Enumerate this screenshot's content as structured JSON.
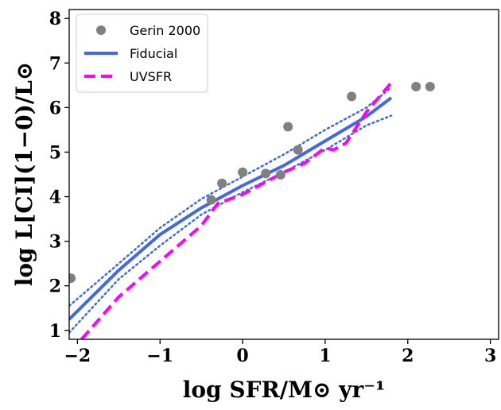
{
  "chart_data": {
    "type": "line",
    "xlabel": "log SFR/M⊙ yr⁻¹",
    "ylabel": "log L[CI](1−0)/L⊙",
    "xlim": [
      -2.1,
      3.1
    ],
    "ylim": [
      0.8,
      8.2
    ],
    "x_ticks": [
      -2,
      -1,
      0,
      1,
      2,
      3
    ],
    "x_tick_labels": [
      "−2",
      "−1",
      "0",
      "1",
      "2",
      "3"
    ],
    "y_ticks": [
      1,
      2,
      3,
      4,
      5,
      6,
      7,
      8
    ],
    "y_tick_labels": [
      "1",
      "2",
      "3",
      "4",
      "5",
      "6",
      "7",
      "8"
    ],
    "grid": false,
    "legend_position": "top-left",
    "colors": {
      "observed": "#808080",
      "fiducial": "#4169e1",
      "uvsfr": "#ff00ff"
    },
    "series": [
      {
        "name": "Gerin 2000",
        "kind": "scatter",
        "points": [
          [
            -2.08,
            2.17
          ],
          [
            -0.38,
            3.93
          ],
          [
            -0.25,
            4.3
          ],
          [
            0.0,
            4.55
          ],
          [
            0.28,
            4.52
          ],
          [
            0.46,
            4.49
          ],
          [
            0.55,
            5.57
          ],
          [
            0.67,
            5.05
          ],
          [
            1.32,
            6.25
          ],
          [
            2.1,
            6.47
          ],
          [
            2.27,
            6.47
          ]
        ]
      },
      {
        "name": "Fiducial",
        "kind": "line",
        "points": [
          [
            -2.1,
            1.25
          ],
          [
            -1.5,
            2.35
          ],
          [
            -1.0,
            3.15
          ],
          [
            -0.5,
            3.75
          ],
          [
            0.0,
            4.25
          ],
          [
            0.5,
            4.7
          ],
          [
            1.0,
            5.25
          ],
          [
            1.5,
            5.8
          ],
          [
            1.8,
            6.22
          ]
        ]
      },
      {
        "name": "Fiducial upper",
        "kind": "dotted",
        "points": [
          [
            -2.1,
            1.55
          ],
          [
            -1.5,
            2.5
          ],
          [
            -1.0,
            3.3
          ],
          [
            -0.5,
            3.95
          ],
          [
            0.0,
            4.45
          ],
          [
            0.5,
            4.95
          ],
          [
            1.0,
            5.5
          ],
          [
            1.5,
            6.0
          ],
          [
            1.8,
            6.45
          ]
        ]
      },
      {
        "name": "Fiducial lower",
        "kind": "dotted",
        "points": [
          [
            -2.1,
            0.95
          ],
          [
            -1.5,
            2.15
          ],
          [
            -1.0,
            2.9
          ],
          [
            -0.5,
            3.6
          ],
          [
            0.0,
            4.1
          ],
          [
            0.5,
            4.55
          ],
          [
            1.0,
            5.05
          ],
          [
            1.5,
            5.6
          ],
          [
            1.8,
            5.82
          ]
        ]
      },
      {
        "name": "UVSFR",
        "kind": "dashed",
        "points": [
          [
            -1.95,
            0.8
          ],
          [
            -1.5,
            1.75
          ],
          [
            -1.0,
            2.55
          ],
          [
            -0.5,
            3.35
          ],
          [
            -0.3,
            3.85
          ],
          [
            0.0,
            4.05
          ],
          [
            0.5,
            4.55
          ],
          [
            0.75,
            4.75
          ],
          [
            1.0,
            5.1
          ],
          [
            1.1,
            5.05
          ],
          [
            1.25,
            5.2
          ],
          [
            1.5,
            5.9
          ],
          [
            1.82,
            6.6
          ]
        ]
      }
    ],
    "legend": [
      {
        "label": "Gerin 2000",
        "kind": "scatter",
        "color_key": "observed"
      },
      {
        "label": "Fiducial",
        "kind": "line",
        "color_key": "fiducial"
      },
      {
        "label": "UVSFR",
        "kind": "dashed",
        "color_key": "uvsfr"
      }
    ]
  }
}
